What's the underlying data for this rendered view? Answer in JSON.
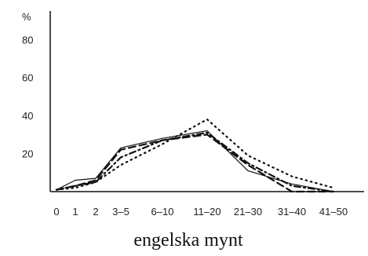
{
  "chart_data": {
    "type": "line",
    "caption": "engelska mynt",
    "ylabel": "%",
    "categories": [
      "0",
      "1",
      "2",
      "3–5",
      "6–10",
      "11–20",
      "21–30",
      "31–40",
      "41–50"
    ],
    "yticks": [
      "20",
      "40",
      "60",
      "80"
    ],
    "ylim": [
      0,
      95
    ],
    "grid": false,
    "legend": "none",
    "series": [
      {
        "style": "solid",
        "values": [
          1,
          6,
          7,
          23,
          28,
          32,
          11,
          4,
          0
        ]
      },
      {
        "style": "dashed",
        "values": [
          1,
          3,
          6,
          22,
          27,
          30,
          14,
          0,
          0
        ]
      },
      {
        "style": "dotted",
        "values": [
          1,
          2,
          5,
          14,
          25,
          38,
          19,
          8,
          2
        ]
      },
      {
        "style": "dash-dot",
        "values": [
          1,
          3,
          5,
          18,
          27,
          31,
          15,
          3,
          0
        ]
      }
    ]
  }
}
